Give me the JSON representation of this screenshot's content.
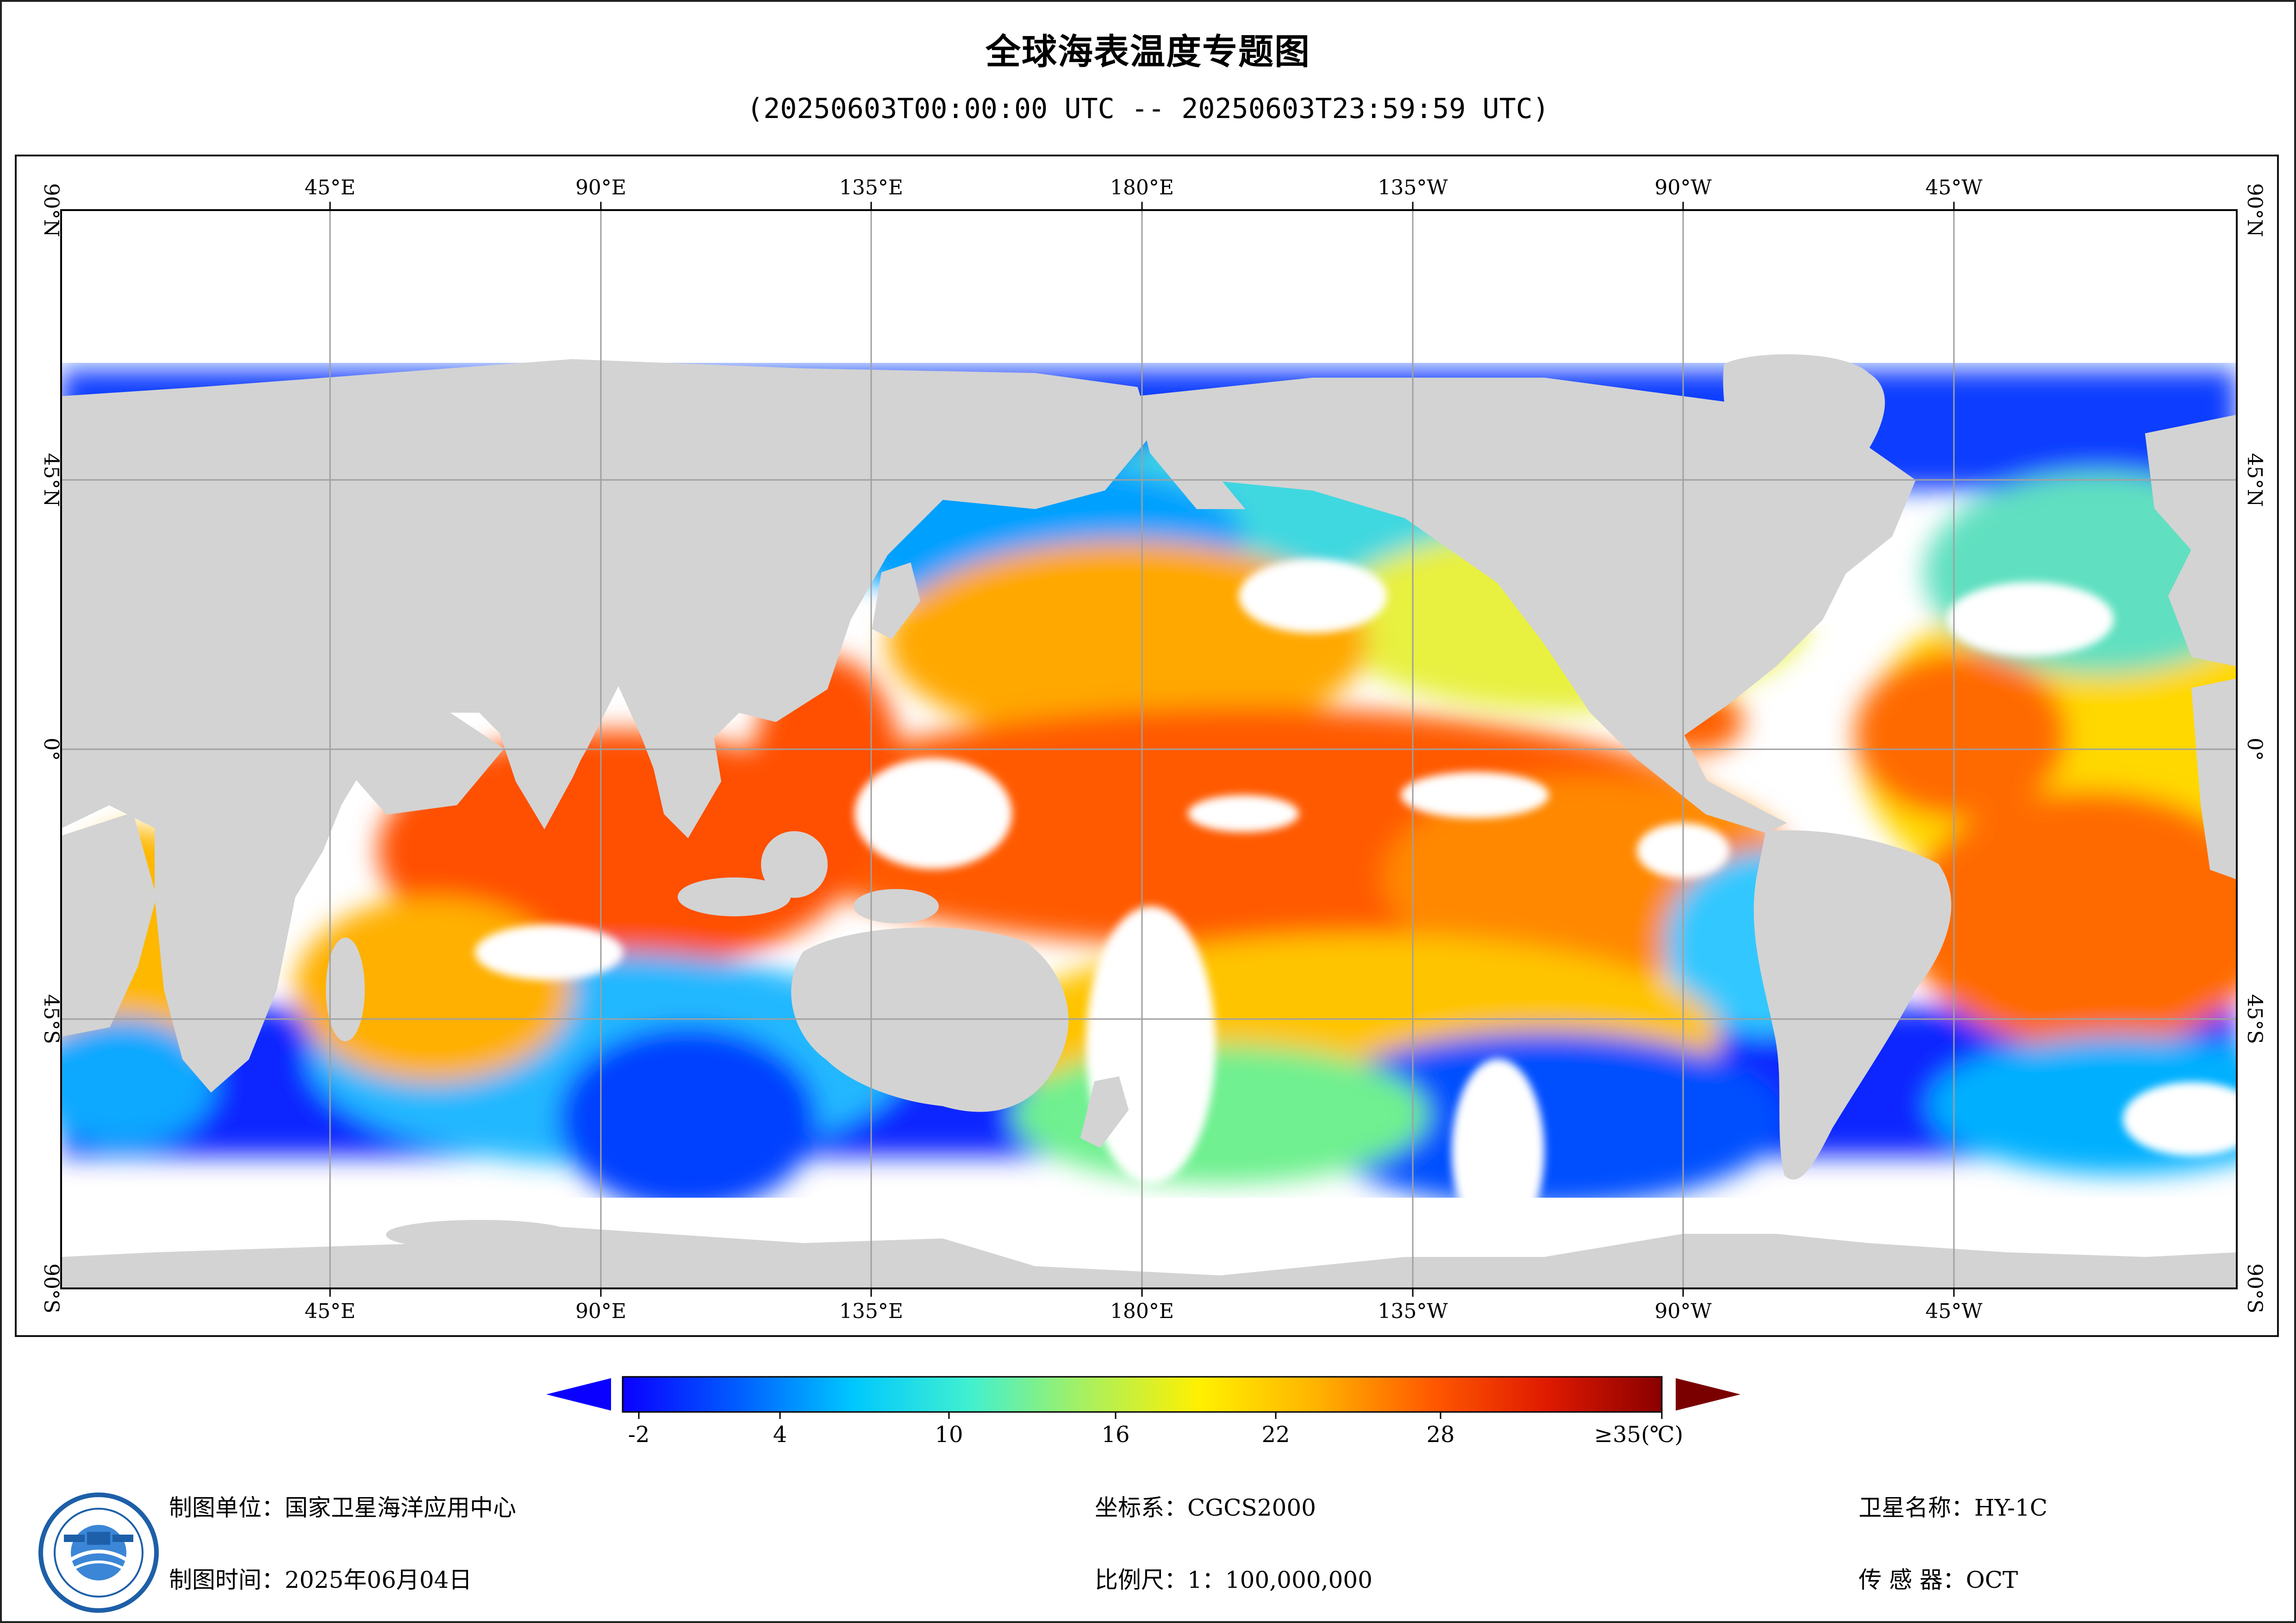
{
  "title": "全球海表温度专题图",
  "subtitle": "(20250603T00:00:00 UTC -- 20250603T23:59:59 UTC)",
  "map": {
    "top_lon_labels": [
      "45°E",
      "90°E",
      "135°E",
      "180°E",
      "135°W",
      "90°W",
      "45°W"
    ],
    "bottom_lon_labels": [
      "45°E",
      "90°E",
      "135°E",
      "180°E",
      "135°W",
      "90°W",
      "45°W"
    ],
    "left_lat_labels": [
      "90°N",
      "45°N",
      "0°",
      "45°S",
      "90°S"
    ],
    "right_lat_labels": [
      "90°N",
      "45°N",
      "0°",
      "45°S",
      "90°S"
    ],
    "colors": {
      "land": "#d3d3d3",
      "no_data": "#ffffff",
      "grid": "#a0a0a0"
    }
  },
  "colorbar": {
    "ticks": [
      "-2",
      "4",
      "10",
      "16",
      "22",
      "28",
      "≥35(℃)"
    ],
    "colors": [
      "#0a00ff",
      "#005dff",
      "#00c8ff",
      "#40f0d0",
      "#a8f060",
      "#fff000",
      "#ffb400",
      "#ff5a00",
      "#e01a00",
      "#8a0000"
    ],
    "under_color": "#0a00ff",
    "over_color": "#7a0000"
  },
  "footer": {
    "unit_label": "制图单位：国家卫星海洋应用中心",
    "time_label": "制图时间：2025年06月04日",
    "crs_label": "坐标系：CGCS2000",
    "scale_label": "比例尺：1：100,000,000",
    "satellite_label": "卫星名称：HY-1C",
    "sensor_label": "传 感 器：OCT"
  }
}
